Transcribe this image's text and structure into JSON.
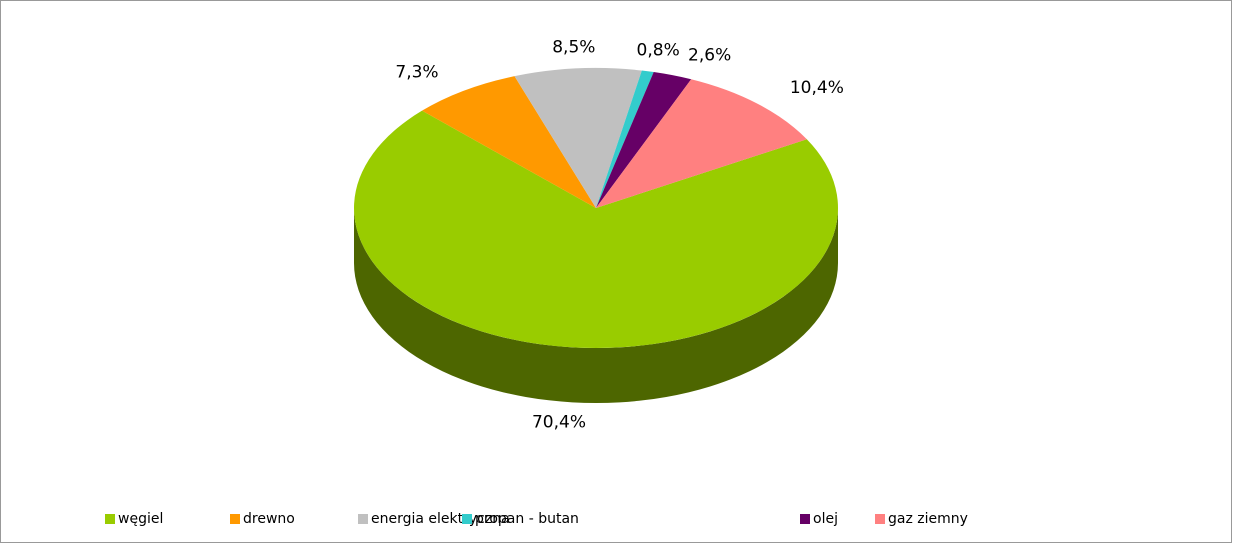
{
  "chart_data": {
    "type": "pie3d",
    "categories": [
      "węgiel",
      "drewno",
      "energia elektryczna",
      "propan - butan",
      "olej",
      "gaz ziemny"
    ],
    "values": [
      70.4,
      7.3,
      8.5,
      0.8,
      2.6,
      10.4
    ],
    "value_labels": [
      "70,4%",
      "7,3%",
      "8,5%",
      "0,8%",
      "2,6%",
      "10,4%"
    ],
    "colors": [
      "#99cc00",
      "#ff9900",
      "#c0c0c0",
      "#33cccc",
      "#660066",
      "#ff8080"
    ],
    "legend": "bottom"
  }
}
